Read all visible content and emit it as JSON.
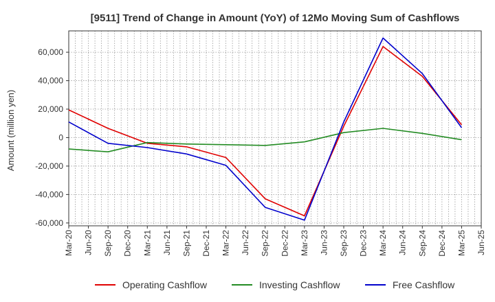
{
  "chart_data": {
    "type": "line",
    "title": "[9511]  Trend of Change in Amount (YoY) of 12Mo Moving Sum of Cashflows",
    "xlabel": "",
    "ylabel": "Amount (million yen)",
    "ylim": [
      -62000,
      75000
    ],
    "yticks": [
      -60000,
      -40000,
      -20000,
      0,
      20000,
      40000,
      60000
    ],
    "ytick_labels": [
      "-60,000",
      "-40,000",
      "-20,000",
      "0",
      "20,000",
      "40,000",
      "60,000"
    ],
    "categories": [
      "Mar-20",
      "Jun-20",
      "Sep-20",
      "Dec-20",
      "Mar-21",
      "Jun-21",
      "Sep-21",
      "Dec-21",
      "Mar-22",
      "Jun-22",
      "Sep-22",
      "Dec-22",
      "Mar-23",
      "Jun-23",
      "Sep-23",
      "Dec-23",
      "Mar-24",
      "Jun-24",
      "Sep-24",
      "Dec-24",
      "Mar-25",
      "Jun-25"
    ],
    "grid": true,
    "legend_position": "bottom",
    "series": [
      {
        "name": "Operating Cashflow",
        "color": "#e00000",
        "values": [
          19500,
          null,
          6500,
          null,
          -4000,
          null,
          -6500,
          null,
          -14000,
          null,
          -43000,
          null,
          -55000,
          null,
          8000,
          null,
          64000,
          null,
          43000,
          null,
          9000,
          null
        ]
      },
      {
        "name": "Investing Cashflow",
        "color": "#228b22",
        "values": [
          -8000,
          null,
          -10000,
          null,
          -3500,
          null,
          -4500,
          null,
          -5000,
          null,
          -5500,
          null,
          -3000,
          null,
          3500,
          null,
          6500,
          null,
          3000,
          null,
          -1500,
          null
        ]
      },
      {
        "name": "Free Cashflow",
        "color": "#0000cc",
        "values": [
          11000,
          null,
          -4000,
          null,
          -7000,
          null,
          -11500,
          null,
          -19500,
          null,
          -49000,
          null,
          -58000,
          null,
          11000,
          null,
          70000,
          null,
          45000,
          null,
          7000,
          null
        ]
      }
    ]
  }
}
